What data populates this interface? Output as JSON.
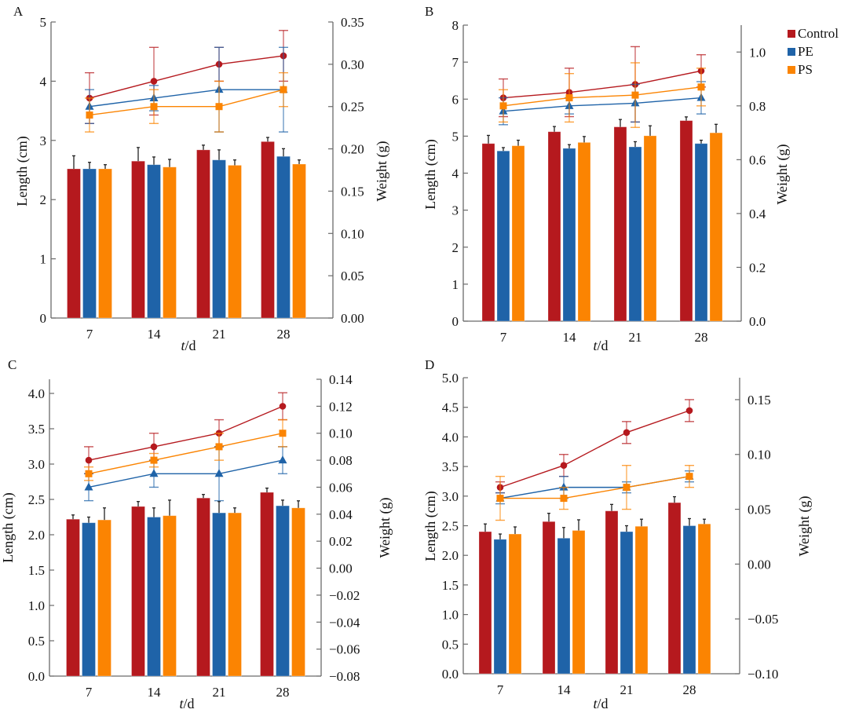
{
  "figure": {
    "legend": [
      {
        "name": "Control",
        "color": "#b5191e"
      },
      {
        "name": "PE",
        "color": "#1f63a8"
      },
      {
        "name": "PS",
        "color": "#fb8402"
      }
    ],
    "legend_placement": "top-right"
  },
  "chart_data": [
    {
      "panel": "A",
      "type": "bar+line",
      "categories": [
        "7",
        "14",
        "21",
        "28"
      ],
      "xlabel_italic": "t",
      "xlabel_rest": "/d",
      "ylabel": "Length (cm)",
      "y2label": "Weight (g)",
      "ylim": [
        0,
        5
      ],
      "yticks": [
        "0",
        "1",
        "2",
        "3",
        "4",
        "5"
      ],
      "ytick_values": [
        0,
        1,
        2,
        3,
        4,
        5
      ],
      "y2lim": [
        0,
        0.35
      ],
      "y2ticks": [
        "0.00",
        "0.05",
        "0.10",
        "0.15",
        "0.20",
        "0.25",
        "0.30",
        "0.35"
      ],
      "y2tick_values": [
        0,
        0.05,
        0.1,
        0.15,
        0.2,
        0.25,
        0.3,
        0.35
      ],
      "bars": [
        {
          "name": "Control",
          "values": [
            2.52,
            2.65,
            2.84,
            2.98
          ],
          "errors": [
            0.22,
            0.23,
            0.08,
            0.07
          ]
        },
        {
          "name": "PE",
          "values": [
            2.52,
            2.59,
            2.67,
            2.73
          ],
          "errors": [
            0.11,
            0.13,
            0.17,
            0.13
          ]
        },
        {
          "name": "PS",
          "values": [
            2.52,
            2.55,
            2.58,
            2.6
          ],
          "errors": [
            0.07,
            0.13,
            0.09,
            0.07
          ]
        }
      ],
      "lines": [
        {
          "name": "Control",
          "marker": "circle",
          "values": [
            0.26,
            0.28,
            0.3,
            0.31
          ],
          "errors": [
            0.03,
            0.04,
            0.02,
            0.03
          ]
        },
        {
          "name": "PE",
          "marker": "triangle",
          "values": [
            0.25,
            0.26,
            0.27,
            0.27
          ],
          "errors": [
            0.02,
            0.015,
            0.05,
            0.05
          ]
        },
        {
          "name": "PS",
          "marker": "square",
          "values": [
            0.24,
            0.25,
            0.25,
            0.27
          ],
          "errors": [
            0.02,
            0.02,
            0.03,
            0.02
          ]
        }
      ]
    },
    {
      "panel": "B",
      "type": "bar+line",
      "categories": [
        "7",
        "14",
        "21",
        "28"
      ],
      "xlabel_italic": "t",
      "xlabel_rest": "/d",
      "ylabel": "Length (cm)",
      "y2label": "Weight (g)",
      "ylim": [
        0,
        8
      ],
      "yticks": [
        "0",
        "1",
        "2",
        "3",
        "4",
        "5",
        "6",
        "7",
        "8"
      ],
      "ytick_values": [
        0,
        1,
        2,
        3,
        4,
        5,
        6,
        7,
        8
      ],
      "y2lim": [
        0,
        1.1
      ],
      "y2ticks": [
        "0.0",
        "0.2",
        "0.4",
        "0.6",
        "0.8",
        "1.0"
      ],
      "y2tick_values": [
        0,
        0.2,
        0.4,
        0.6,
        0.8,
        1.0
      ],
      "bars": [
        {
          "name": "Control",
          "values": [
            4.8,
            5.12,
            5.25,
            5.42
          ],
          "errors": [
            0.22,
            0.14,
            0.2,
            0.1
          ]
        },
        {
          "name": "PE",
          "values": [
            4.6,
            4.67,
            4.71,
            4.8
          ],
          "errors": [
            0.09,
            0.1,
            0.14,
            0.09
          ]
        },
        {
          "name": "PS",
          "values": [
            4.74,
            4.83,
            5.01,
            5.09
          ],
          "errors": [
            0.15,
            0.16,
            0.27,
            0.23
          ]
        }
      ],
      "lines": [
        {
          "name": "Control",
          "marker": "circle",
          "values": [
            0.83,
            0.85,
            0.88,
            0.93
          ],
          "errors": [
            0.07,
            0.09,
            0.14,
            0.06
          ]
        },
        {
          "name": "PE",
          "marker": "triangle",
          "values": [
            0.78,
            0.8,
            0.81,
            0.83
          ],
          "errors": [
            0.05,
            0.03,
            0.07,
            0.06
          ]
        },
        {
          "name": "PS",
          "marker": "square",
          "values": [
            0.8,
            0.83,
            0.84,
            0.87
          ],
          "errors": [
            0.06,
            0.09,
            0.12,
            0.07
          ]
        }
      ]
    },
    {
      "panel": "C",
      "type": "bar+line",
      "categories": [
        "7",
        "14",
        "21",
        "28"
      ],
      "xlabel_italic": "t",
      "xlabel_rest": "/d",
      "ylabel": "Length (cm)",
      "y2label": "Weight (g)",
      "ylim": [
        0,
        4.2
      ],
      "yticks": [
        "0.0",
        "0.5",
        "1.0",
        "1.5",
        "2.0",
        "2.5",
        "3.0",
        "3.5",
        "4.0"
      ],
      "ytick_values": [
        0,
        0.5,
        1.0,
        1.5,
        2.0,
        2.5,
        3.0,
        3.5,
        4.0
      ],
      "y2lim": [
        -0.08,
        0.14
      ],
      "y2ticks": [
        "−0.08",
        "−0.06",
        "−0.04",
        "−0.02",
        "0.00",
        "0.02",
        "0.04",
        "0.06",
        "0.08",
        "0.10",
        "0.12",
        "0.14"
      ],
      "y2tick_values": [
        -0.08,
        -0.06,
        -0.04,
        -0.02,
        0,
        0.02,
        0.04,
        0.06,
        0.08,
        0.1,
        0.12,
        0.14
      ],
      "bars": [
        {
          "name": "Control",
          "values": [
            2.22,
            2.4,
            2.52,
            2.6
          ],
          "errors": [
            0.06,
            0.07,
            0.05,
            0.06
          ]
        },
        {
          "name": "PE",
          "values": [
            2.17,
            2.25,
            2.31,
            2.41
          ],
          "errors": [
            0.08,
            0.13,
            0.16,
            0.08
          ]
        },
        {
          "name": "PS",
          "values": [
            2.21,
            2.27,
            2.31,
            2.38
          ],
          "errors": [
            0.17,
            0.22,
            0.07,
            0.1
          ]
        }
      ],
      "lines": [
        {
          "name": "Control",
          "marker": "circle",
          "values": [
            0.08,
            0.09,
            0.1,
            0.12
          ],
          "errors": [
            0.01,
            0.01,
            0.01,
            0.01
          ]
        },
        {
          "name": "PE",
          "marker": "triangle",
          "values": [
            0.06,
            0.07,
            0.07,
            0.08
          ],
          "errors": [
            0.01,
            0.01,
            0.02,
            0.01
          ]
        },
        {
          "name": "PS",
          "marker": "square",
          "values": [
            0.07,
            0.08,
            0.09,
            0.1
          ],
          "errors": [
            0.005,
            0.005,
            0.01,
            0.01
          ]
        }
      ]
    },
    {
      "panel": "D",
      "type": "bar+line",
      "categories": [
        "7",
        "14",
        "21",
        "28"
      ],
      "xlabel_italic": "t",
      "xlabel_rest": "/d",
      "ylabel": "Length (cm)",
      "y2label": "Weight (g)",
      "ylim": [
        0,
        5
      ],
      "yticks": [
        "0.0",
        "0.5",
        "1.0",
        "1.5",
        "2.0",
        "2.5",
        "3.0",
        "3.5",
        "4.0",
        "4.5",
        "5.0"
      ],
      "ytick_values": [
        0,
        0.5,
        1.0,
        1.5,
        2.0,
        2.5,
        3.0,
        3.5,
        4.0,
        4.5,
        5.0
      ],
      "y2lim": [
        -0.1,
        0.17
      ],
      "y2ticks": [
        "−0.10",
        "−0.05",
        "0.00",
        "0.05",
        "0.10",
        "0.15"
      ],
      "y2tick_values": [
        -0.1,
        -0.05,
        0,
        0.05,
        0.1,
        0.15
      ],
      "bars": [
        {
          "name": "Control",
          "values": [
            2.4,
            2.57,
            2.75,
            2.89
          ],
          "errors": [
            0.13,
            0.14,
            0.11,
            0.1
          ]
        },
        {
          "name": "PE",
          "values": [
            2.27,
            2.29,
            2.4,
            2.5
          ],
          "errors": [
            0.09,
            0.18,
            0.1,
            0.12
          ]
        },
        {
          "name": "PS",
          "values": [
            2.36,
            2.42,
            2.49,
            2.53
          ],
          "errors": [
            0.12,
            0.18,
            0.12,
            0.08
          ]
        }
      ],
      "lines": [
        {
          "name": "Control",
          "marker": "circle",
          "values": [
            0.07,
            0.09,
            0.12,
            0.14
          ],
          "errors": [
            0.005,
            0.01,
            0.01,
            0.01
          ]
        },
        {
          "name": "PE",
          "marker": "triangle",
          "values": [
            0.06,
            0.07,
            0.07,
            0.08
          ],
          "errors": [
            0.005,
            0.01,
            0.005,
            0.005
          ]
        },
        {
          "name": "PS",
          "marker": "square",
          "values": [
            0.06,
            0.06,
            0.07,
            0.08
          ],
          "errors": [
            0.02,
            0.01,
            0.02,
            0.01
          ]
        }
      ]
    }
  ]
}
